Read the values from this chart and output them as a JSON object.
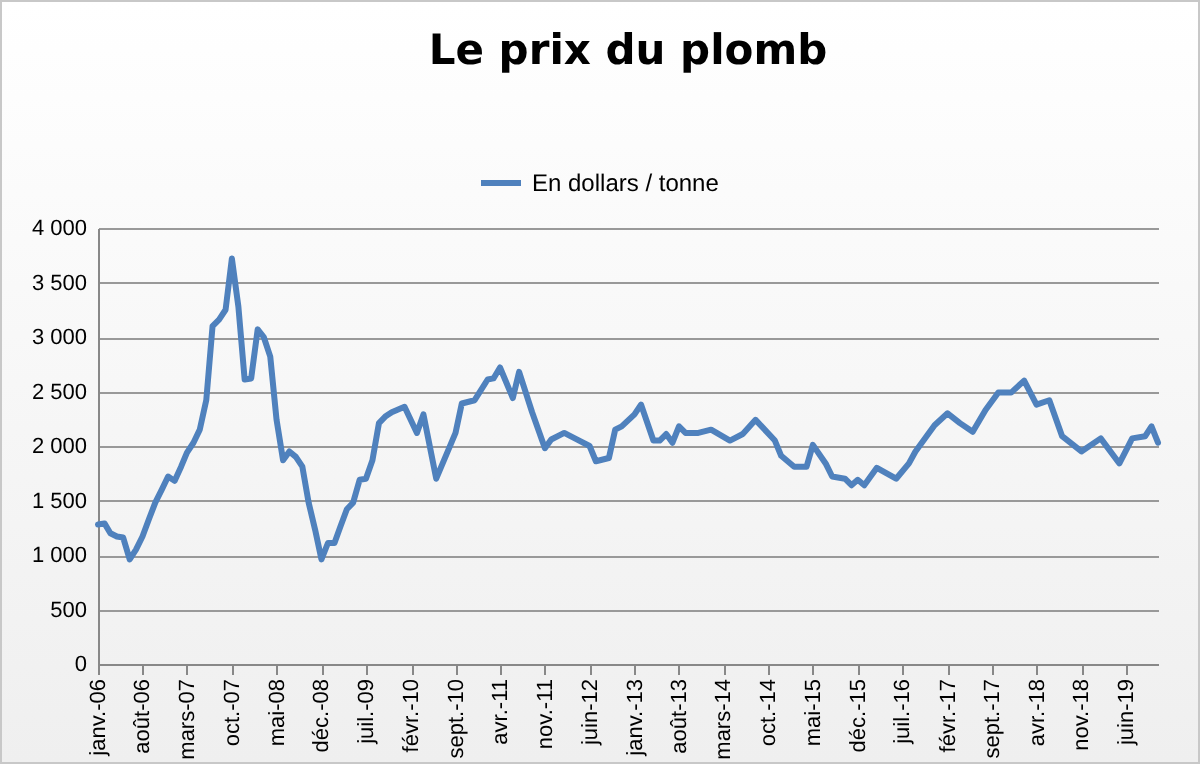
{
  "chart_data": {
    "type": "line",
    "title": "Le prix du plomb",
    "legend": "top",
    "grid": "y",
    "marker": "none",
    "xlim": [
      "2006-01",
      "2019-11"
    ],
    "xticks": [
      {
        "value": "2006-01",
        "label": "janv.-06"
      },
      {
        "value": "2006-08",
        "label": "août-06"
      },
      {
        "value": "2007-03",
        "label": "mars-07"
      },
      {
        "value": "2007-10",
        "label": "oct.-07"
      },
      {
        "value": "2008-05",
        "label": "mai-08"
      },
      {
        "value": "2008-12",
        "label": "déc.-08"
      },
      {
        "value": "2009-07",
        "label": "juil.-09"
      },
      {
        "value": "2010-02",
        "label": "févr.-10"
      },
      {
        "value": "2010-09",
        "label": "sept.-10"
      },
      {
        "value": "2011-04",
        "label": "avr.-11"
      },
      {
        "value": "2011-11",
        "label": "nov.-11"
      },
      {
        "value": "2012-06",
        "label": "juin-12"
      },
      {
        "value": "2013-01",
        "label": "janv.-13"
      },
      {
        "value": "2013-08",
        "label": "août-13"
      },
      {
        "value": "2014-03",
        "label": "mars-14"
      },
      {
        "value": "2014-10",
        "label": "oct.-14"
      },
      {
        "value": "2015-05",
        "label": "mai-15"
      },
      {
        "value": "2015-12",
        "label": "déc.-15"
      },
      {
        "value": "2016-07",
        "label": "juil.-16"
      },
      {
        "value": "2017-02",
        "label": "févr.-17"
      },
      {
        "value": "2017-09",
        "label": "sept.-17"
      },
      {
        "value": "2018-04",
        "label": "avr.-18"
      },
      {
        "value": "2018-11",
        "label": "nov.-18"
      },
      {
        "value": "2019-06",
        "label": "juin-19"
      }
    ],
    "ylim": [
      0,
      4000
    ],
    "yticks": [
      0,
      500,
      {
        "value": 1000,
        "label": "1 000"
      },
      {
        "value": 1500,
        "label": "1 500"
      },
      {
        "value": 2000,
        "label": "2 000"
      },
      {
        "value": 2500,
        "label": "2 500"
      },
      {
        "value": 3000,
        "label": "3 000"
      },
      {
        "value": 3500,
        "label": "3 500"
      },
      {
        "value": 4000,
        "label": "4 000"
      }
    ],
    "x": [
      "2006-01",
      "2006-02",
      "2006-03",
      "2006-04",
      "2006-05",
      "2006-06",
      "2006-07",
      "2006-08",
      "2006-09",
      "2006-10",
      "2006-11",
      "2006-12",
      "2007-01",
      "2007-02",
      "2007-03",
      "2007-04",
      "2007-05",
      "2007-06",
      "2007-07",
      "2007-08",
      "2007-09",
      "2007-10",
      "2007-11",
      "2007-12",
      "2008-01",
      "2008-02",
      "2008-03",
      "2008-04",
      "2008-05",
      "2008-06",
      "2008-07",
      "2008-08",
      "2008-09",
      "2008-10",
      "2008-11",
      "2008-12",
      "2009-01",
      "2009-02",
      "2009-03",
      "2009-04",
      "2009-05",
      "2009-06",
      "2009-07",
      "2009-08",
      "2009-09",
      "2009-10",
      "2009-11",
      "2010-01",
      "2010-03",
      "2010-04",
      "2010-06",
      "2010-09",
      "2010-10",
      "2010-12",
      "2011-02",
      "2011-03",
      "2011-04",
      "2011-06",
      "2011-07",
      "2011-09",
      "2011-11",
      "2011-12",
      "2012-02",
      "2012-04",
      "2012-06",
      "2012-07",
      "2012-09",
      "2012-10",
      "2012-11",
      "2013-01",
      "2013-02",
      "2013-04",
      "2013-05",
      "2013-06",
      "2013-07",
      "2013-08",
      "2013-09",
      "2013-11",
      "2014-01",
      "2014-04",
      "2014-06",
      "2014-08",
      "2014-11",
      "2014-12",
      "2015-02",
      "2015-04",
      "2015-05",
      "2015-07",
      "2015-08",
      "2015-10",
      "2015-11",
      "2015-12",
      "2016-01",
      "2016-03",
      "2016-06",
      "2016-08",
      "2016-09",
      "2016-12",
      "2017-02",
      "2017-04",
      "2017-06",
      "2017-08",
      "2017-10",
      "2017-12",
      "2018-02",
      "2018-04",
      "2018-06",
      "2018-08",
      "2018-11",
      "2019-02",
      "2019-05",
      "2019-07",
      "2019-09",
      "2019-10",
      "2019-11"
    ],
    "series": [
      {
        "name": "En dollars / tonne",
        "color": "#4f81bd",
        "values": [
          1280,
          1290,
          1200,
          1170,
          1160,
          960,
          1050,
          1170,
          1330,
          1480,
          1600,
          1720,
          1680,
          1810,
          1940,
          2030,
          2150,
          2420,
          3100,
          3160,
          3250,
          3720,
          3280,
          2610,
          2620,
          3070,
          3000,
          2820,
          2240,
          1870,
          1950,
          1900,
          1810,
          1480,
          1230,
          960,
          1110,
          1110,
          1260,
          1420,
          1480,
          1690,
          1700,
          1870,
          2210,
          2270,
          2310,
          2360,
          2120,
          2290,
          1700,
          2120,
          2390,
          2420,
          2610,
          2620,
          2720,
          2440,
          2680,
          2310,
          1980,
          2060,
          2120,
          2060,
          2000,
          1860,
          1890,
          2150,
          2180,
          2290,
          2380,
          2050,
          2050,
          2110,
          2030,
          2180,
          2120,
          2120,
          2150,
          2050,
          2110,
          2240,
          2050,
          1910,
          1810,
          1810,
          2010,
          1840,
          1720,
          1700,
          1640,
          1690,
          1640,
          1800,
          1700,
          1840,
          1950,
          2190,
          2300,
          2210,
          2130,
          2330,
          2490,
          2490,
          2600,
          2380,
          2420,
          2090,
          1950,
          2070,
          1840,
          2070,
          2090,
          2180,
          2030
        ]
      }
    ]
  }
}
